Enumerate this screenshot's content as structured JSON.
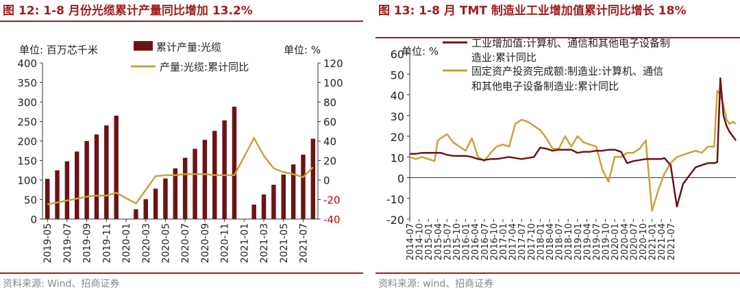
{
  "colors": {
    "title": "#9e1b1e",
    "bar": "#6b1316",
    "line_gold": "#c7a23a",
    "neg_tick": "#c00000",
    "source": "#888888"
  },
  "chart_data": [
    {
      "type": "bar+line",
      "title": "图 12:  1-8 月份光缆累计产量同比增加 13.2%",
      "left_unit_label": "单位:  百万芯千米",
      "right_unit_label": "单位:  %",
      "left_ylim": [
        0,
        400
      ],
      "right_ylim": [
        -40,
        120
      ],
      "left_ticks": [
        "400",
        "350",
        "300",
        "250",
        "200",
        "150",
        "100",
        "50",
        "0"
      ],
      "right_ticks": [
        "120",
        "100",
        "80",
        "60",
        "40",
        "20",
        "0",
        "-20",
        "-40"
      ],
      "x_tick_labels": [
        "2019-05",
        "2019-07",
        "2019-09",
        "2019-11",
        "2020-01",
        "2020-03",
        "2020-05",
        "2020-07",
        "2020-09",
        "2020-11",
        "2021-01",
        "2021-03",
        "2021-05",
        "2021-07"
      ],
      "categories": [
        "2019-05",
        "2019-06",
        "2019-07",
        "2019-08",
        "2019-09",
        "2019-10",
        "2019-11",
        "2019-12",
        "2020-01",
        "2020-02",
        "2020-03",
        "2020-04",
        "2020-05",
        "2020-06",
        "2020-07",
        "2020-08",
        "2020-09",
        "2020-10",
        "2020-11",
        "2020-12",
        "2021-01",
        "2021-02",
        "2021-03",
        "2021-04",
        "2021-05",
        "2021-06",
        "2021-07",
        "2021-08"
      ],
      "series": [
        {
          "name": "累计产量:光缆",
          "axis": "left",
          "kind": "bar",
          "values": [
            103,
            125,
            148,
            173,
            200,
            217,
            240,
            265,
            null,
            25,
            51,
            78,
            104,
            130,
            157,
            180,
            203,
            226,
            253,
            288,
            null,
            37,
            63,
            88,
            114,
            140,
            165,
            206
          ]
        },
        {
          "name": "产量:光缆:累计同比",
          "axis": "right",
          "kind": "line",
          "values": [
            -25,
            -23,
            -21,
            -19,
            -17,
            -16,
            -16,
            -13,
            null,
            -24,
            -10,
            4,
            5,
            5,
            6,
            6,
            6,
            5,
            5,
            5,
            null,
            43,
            25,
            12,
            8,
            6,
            3,
            13.2
          ]
        }
      ],
      "source": "资料来源:  Wind、招商证券"
    },
    {
      "type": "line",
      "title": "图 13:  1-8 月 TMT 制造业工业增加值累计同比增长 18%",
      "unit_label": "单位:  %",
      "ylim": [
        -20,
        60
      ],
      "y_ticks": [
        "60",
        "50",
        "40",
        "30",
        "20",
        "10",
        "0",
        "-10",
        "-20"
      ],
      "x_tick_labels": [
        "2014-07",
        "2014-10",
        "2015-01",
        "2015-04",
        "2015-07",
        "2015-10",
        "2016-01",
        "2016-04",
        "2016-07",
        "2016-10",
        "2017-01",
        "2017-04",
        "2017-07",
        "2017-10",
        "2018-01",
        "2018-04",
        "2018-07",
        "2018-10",
        "2019-01",
        "2019-04",
        "2019-07",
        "2019-10",
        "2020-01",
        "2020-04",
        "2020-07",
        "2020-10",
        "2021-01",
        "2021-04",
        "2021-07"
      ],
      "series": [
        {
          "name": "工业增加值:计算机、通信和其他电子设备制造业:累计同比",
          "color": "#6b1316",
          "x_index": [
            0,
            2,
            4,
            6,
            8,
            10,
            12,
            14,
            16,
            18,
            20,
            22,
            24,
            26,
            28,
            30,
            32,
            34,
            36,
            38,
            40,
            42,
            44,
            46,
            48,
            50,
            52,
            54,
            56,
            58,
            60,
            62,
            64,
            66,
            68,
            70,
            72,
            74,
            76,
            78,
            80,
            81,
            82,
            84,
            86,
            88,
            90,
            92,
            94,
            96,
            98,
            99,
            100,
            101,
            102,
            103,
            104,
            105
          ],
          "values": [
            11.5,
            11.5,
            12,
            12,
            12,
            12,
            11,
            10.5,
            10.5,
            10.5,
            10,
            9,
            8.5,
            9,
            9,
            9.5,
            10,
            9.5,
            9,
            9.5,
            10,
            14.5,
            14,
            13,
            13.5,
            13.5,
            13.5,
            12,
            12.5,
            12.5,
            13,
            13,
            13.5,
            13.5,
            12.5,
            7,
            8,
            8.5,
            9,
            9,
            9,
            9,
            9.5,
            6,
            -14,
            -3,
            1,
            5,
            6,
            7,
            7,
            7.5,
            48,
            30,
            25,
            22,
            20,
            18
          ]
        },
        {
          "name": "固定资产投资完成额:制造业:计算机、通信和其他电子设备制造业:累计同比",
          "color": "#c7a23a",
          "x_index": [
            0,
            2,
            4,
            6,
            8,
            9,
            10,
            12,
            14,
            16,
            18,
            20,
            22,
            24,
            26,
            28,
            30,
            32,
            34,
            36,
            38,
            40,
            42,
            44,
            46,
            48,
            50,
            52,
            54,
            56,
            58,
            60,
            62,
            64,
            66,
            68,
            70,
            72,
            74,
            76,
            78,
            80,
            82,
            84,
            86,
            88,
            90,
            92,
            94,
            96,
            98,
            99,
            100,
            101,
            102,
            103,
            104,
            105
          ],
          "values": [
            10,
            9,
            10,
            9,
            8,
            18,
            19,
            21,
            17,
            15,
            13,
            19,
            10,
            8,
            12,
            15,
            16,
            15,
            26,
            28,
            27,
            25,
            23,
            19,
            14,
            14,
            20,
            15,
            20,
            17,
            16,
            15,
            4,
            -2,
            10,
            10,
            12,
            12,
            14,
            18,
            -16,
            -6,
            2,
            7,
            10,
            11,
            12,
            13,
            12,
            15,
            15,
            42,
            40,
            35,
            28,
            26,
            27,
            26
          ]
        }
      ],
      "source": "资料来源:  wind、招商证券"
    }
  ]
}
